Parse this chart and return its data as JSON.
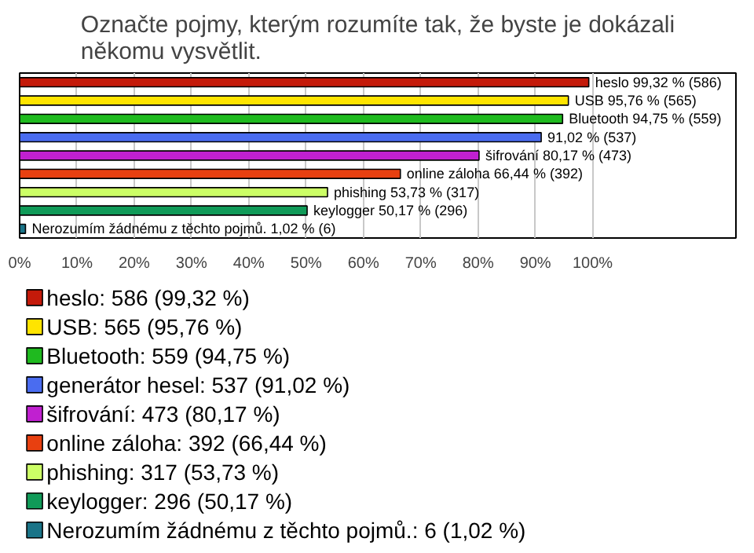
{
  "chart_data": {
    "type": "bar",
    "orientation": "horizontal",
    "title": "Označte pojmy, kterým rozumíte tak, že byste je dokázali někomu vysvětlit.",
    "categories": [
      null,
      null,
      null,
      null,
      null,
      null,
      null,
      null,
      null
    ],
    "series": [
      {
        "name": "heslo: 586 (99,32 %)",
        "color": "#c41a0a",
        "values": [
          99.32,
          null,
          null,
          null,
          null,
          null,
          null,
          null,
          null
        ],
        "value_labels": [
          "heslo 99,32 % (586)",
          null,
          null,
          null,
          null,
          null,
          null,
          null,
          null
        ]
      },
      {
        "name": "USB: 565 (95,76 %)",
        "color": "#ffe400",
        "values": [
          null,
          95.76,
          null,
          null,
          null,
          null,
          null,
          null,
          null
        ],
        "value_labels": [
          null,
          "USB 95,76 % (565)",
          null,
          null,
          null,
          null,
          null,
          null,
          null
        ]
      },
      {
        "name": "Bluetooth: 559 (94,75 %)",
        "color": "#1fba1f",
        "values": [
          null,
          null,
          94.75,
          null,
          null,
          null,
          null,
          null,
          null
        ],
        "value_labels": [
          null,
          null,
          "Bluetooth 94,75 % (559)",
          null,
          null,
          null,
          null,
          null,
          null
        ]
      },
      {
        "name": "generátor hesel: 537 (91,02 %)",
        "color": "#4a6cf0",
        "values": [
          null,
          null,
          null,
          91.02,
          null,
          null,
          null,
          null,
          null
        ],
        "value_labels": [
          null,
          null,
          null,
          "91,02 % (537)",
          null,
          null,
          null,
          null,
          null
        ]
      },
      {
        "name": "šifrování: 473 (80,17 %)",
        "color": "#c020d0",
        "values": [
          null,
          null,
          null,
          null,
          80.17,
          null,
          null,
          null,
          null
        ],
        "value_labels": [
          null,
          null,
          null,
          null,
          "šifrování 80,17 % (473)",
          null,
          null,
          null,
          null
        ]
      },
      {
        "name": "online záloha: 392 (66,44 %)",
        "color": "#e84010",
        "values": [
          null,
          null,
          null,
          null,
          null,
          66.44,
          null,
          null,
          null
        ],
        "value_labels": [
          null,
          null,
          null,
          null,
          null,
          "online záloha 66,44 % (392)",
          null,
          null,
          null
        ]
      },
      {
        "name": "phishing: 317 (53,73 %)",
        "color": "#ccff66",
        "values": [
          null,
          null,
          null,
          null,
          null,
          null,
          53.73,
          null,
          null
        ],
        "value_labels": [
          null,
          null,
          null,
          null,
          null,
          null,
          "phishing 53,73 % (317)",
          null,
          null
        ]
      },
      {
        "name": "keylogger: 296 (50,17 %)",
        "color": "#109a58",
        "values": [
          null,
          null,
          null,
          null,
          null,
          null,
          null,
          50.17,
          null
        ],
        "value_labels": [
          null,
          null,
          null,
          null,
          null,
          null,
          null,
          "keylogger 50,17 % (296)",
          null
        ]
      },
      {
        "name": "Nerozumím žádnému z těchto pojmů.: 6 (1,02 %)",
        "color": "#1a7488",
        "values": [
          null,
          null,
          null,
          null,
          null,
          null,
          null,
          null,
          1.02
        ],
        "value_labels": [
          null,
          null,
          null,
          null,
          null,
          null,
          null,
          null,
          "Nerozumím žádnému z těchto pojmů. 1,02 % (6)"
        ]
      }
    ],
    "xlim": [
      0,
      125
    ],
    "xticks": [
      {
        "value": 0,
        "label": "0%"
      },
      {
        "value": 10,
        "label": "10%"
      },
      {
        "value": 20,
        "label": "20%"
      },
      {
        "value": 30,
        "label": "30%"
      },
      {
        "value": 40,
        "label": "40%"
      },
      {
        "value": 50,
        "label": "50%"
      },
      {
        "value": 60,
        "label": "60%"
      },
      {
        "value": 70,
        "label": "70%"
      },
      {
        "value": 80,
        "label": "80%"
      },
      {
        "value": 90,
        "label": "90%"
      },
      {
        "value": 100,
        "label": "100%"
      }
    ],
    "grid": "x",
    "tick_labels": "x",
    "legend": "bottom"
  }
}
